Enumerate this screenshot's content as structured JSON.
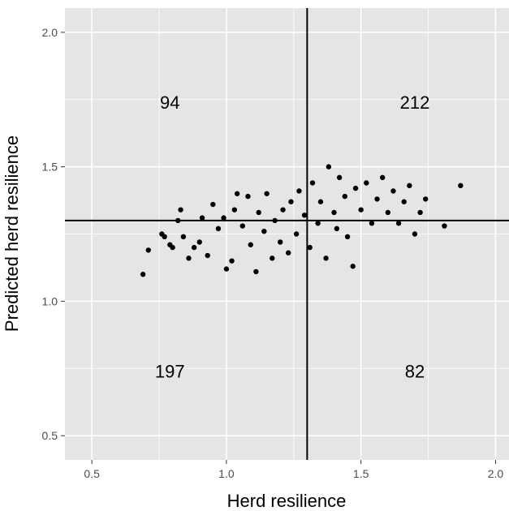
{
  "chart_data": {
    "type": "scatter",
    "title": "",
    "xlabel": "Herd resilience",
    "ylabel": "Predicted herd resilience",
    "xlim": [
      0.4,
      2.05
    ],
    "ylim": [
      0.41,
      2.09
    ],
    "x_ticks": [
      0.5,
      1.0,
      1.5,
      2.0
    ],
    "y_ticks": [
      0.5,
      1.0,
      1.5,
      2.0
    ],
    "x_tick_labels": [
      "0.5",
      "1.0",
      "1.5",
      "2.0"
    ],
    "y_tick_labels": [
      "0.5",
      "1.0",
      "1.5",
      "2.0"
    ],
    "grid": true,
    "background": "#e5e5e5",
    "grid_color": "#ffffff",
    "point_color": "#000000",
    "reference_lines": {
      "vertical_x": 1.3,
      "horizontal_y": 1.3
    },
    "quadrant_counts": [
      {
        "label": "94",
        "x": 0.79,
        "y": 1.74
      },
      {
        "label": "212",
        "x": 1.7,
        "y": 1.74
      },
      {
        "label": "197",
        "x": 0.79,
        "y": 0.74
      },
      {
        "label": "82",
        "x": 1.7,
        "y": 0.74
      }
    ],
    "points": [
      [
        0.69,
        1.1
      ],
      [
        0.71,
        1.19
      ],
      [
        0.76,
        1.25
      ],
      [
        0.77,
        1.24
      ],
      [
        0.79,
        1.21
      ],
      [
        0.8,
        1.2
      ],
      [
        0.82,
        1.3
      ],
      [
        0.83,
        1.34
      ],
      [
        0.84,
        1.24
      ],
      [
        0.86,
        1.16
      ],
      [
        0.88,
        1.2
      ],
      [
        0.9,
        1.22
      ],
      [
        0.91,
        1.31
      ],
      [
        0.93,
        1.17
      ],
      [
        0.95,
        1.36
      ],
      [
        0.97,
        1.27
      ],
      [
        0.99,
        1.31
      ],
      [
        1.0,
        1.12
      ],
      [
        1.02,
        1.15
      ],
      [
        1.03,
        1.34
      ],
      [
        1.04,
        1.4
      ],
      [
        1.06,
        1.28
      ],
      [
        1.08,
        1.39
      ],
      [
        1.09,
        1.21
      ],
      [
        1.11,
        1.11
      ],
      [
        1.12,
        1.33
      ],
      [
        1.14,
        1.26
      ],
      [
        1.15,
        1.4
      ],
      [
        1.17,
        1.16
      ],
      [
        1.18,
        1.3
      ],
      [
        1.2,
        1.22
      ],
      [
        1.21,
        1.34
      ],
      [
        1.23,
        1.18
      ],
      [
        1.24,
        1.37
      ],
      [
        1.26,
        1.25
      ],
      [
        1.27,
        1.41
      ],
      [
        1.29,
        1.32
      ],
      [
        1.31,
        1.2
      ],
      [
        1.32,
        1.44
      ],
      [
        1.34,
        1.29
      ],
      [
        1.35,
        1.37
      ],
      [
        1.37,
        1.16
      ],
      [
        1.38,
        1.5
      ],
      [
        1.4,
        1.33
      ],
      [
        1.41,
        1.27
      ],
      [
        1.42,
        1.46
      ],
      [
        1.44,
        1.39
      ],
      [
        1.45,
        1.24
      ],
      [
        1.47,
        1.13
      ],
      [
        1.48,
        1.42
      ],
      [
        1.5,
        1.34
      ],
      [
        1.52,
        1.44
      ],
      [
        1.54,
        1.29
      ],
      [
        1.56,
        1.38
      ],
      [
        1.58,
        1.46
      ],
      [
        1.6,
        1.33
      ],
      [
        1.62,
        1.41
      ],
      [
        1.64,
        1.29
      ],
      [
        1.66,
        1.37
      ],
      [
        1.68,
        1.43
      ],
      [
        1.7,
        1.25
      ],
      [
        1.72,
        1.33
      ],
      [
        1.74,
        1.38
      ],
      [
        1.81,
        1.28
      ],
      [
        1.87,
        1.43
      ]
    ]
  }
}
